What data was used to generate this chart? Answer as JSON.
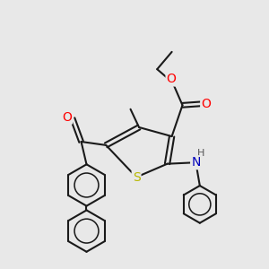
{
  "bg_color": "#e8e8e8",
  "bond_color": "#1a1a1a",
  "bond_width": 1.5,
  "atom_colors": {
    "O": "#ff0000",
    "N": "#0000bb",
    "S": "#b8b800",
    "H": "#555555",
    "C": "#1a1a1a"
  },
  "figsize": [
    3.0,
    3.0
  ],
  "dpi": 100
}
